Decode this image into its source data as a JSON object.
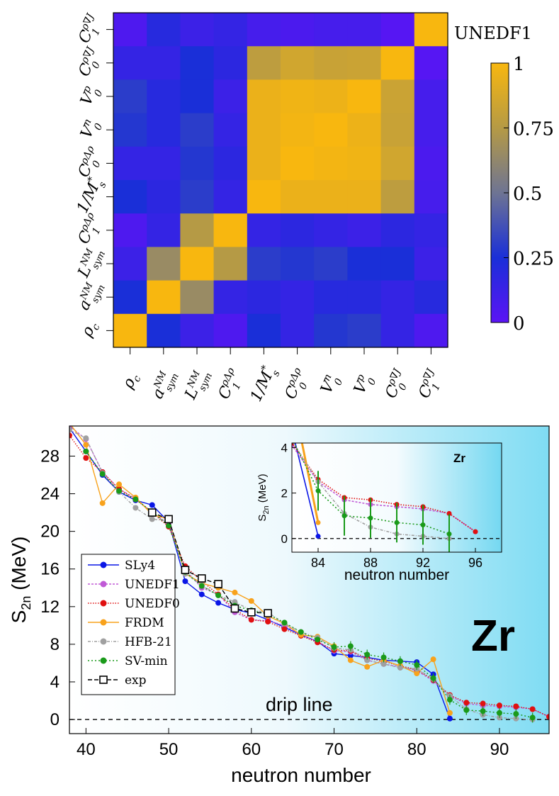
{
  "chart_data": [
    {
      "type": "heatmap",
      "title": "UNEDF1",
      "row_labels": [
        "C1ρ∇J",
        "C0ρ∇J",
        "V0p",
        "V0n",
        "C0ρΔρ",
        "1/Ms*",
        "C1ρΔρ",
        "LsymNM",
        "asymNM",
        "ρc"
      ],
      "col_labels": [
        "ρc",
        "asymNM",
        "LsymNM",
        "C1ρΔρ",
        "1/Ms*",
        "C0ρΔρ",
        "V0n",
        "V0p",
        "C0ρ∇J",
        "C1ρ∇J"
      ],
      "values": [
        [
          0.05,
          0.2,
          0.12,
          0.15,
          0.08,
          0.06,
          0.08,
          0.08,
          0.02,
          1.0
        ],
        [
          0.15,
          0.15,
          0.25,
          0.18,
          0.78,
          0.85,
          0.82,
          0.83,
          1.0,
          0.02
        ],
        [
          0.3,
          0.2,
          0.25,
          0.12,
          0.95,
          0.97,
          0.96,
          1.0,
          0.83,
          0.08
        ],
        [
          0.28,
          0.2,
          0.3,
          0.15,
          0.95,
          0.98,
          1.0,
          0.96,
          0.82,
          0.08
        ],
        [
          0.15,
          0.15,
          0.28,
          0.18,
          0.95,
          1.0,
          0.98,
          0.97,
          0.85,
          0.06
        ],
        [
          0.25,
          0.18,
          0.3,
          0.15,
          1.0,
          0.95,
          0.95,
          0.95,
          0.78,
          0.08
        ],
        [
          0.05,
          0.15,
          0.75,
          1.0,
          0.15,
          0.18,
          0.15,
          0.12,
          0.18,
          0.15
        ],
        [
          0.12,
          0.65,
          1.0,
          0.75,
          0.3,
          0.28,
          0.3,
          0.25,
          0.25,
          0.12
        ],
        [
          0.25,
          1.0,
          0.65,
          0.15,
          0.18,
          0.15,
          0.2,
          0.2,
          0.15,
          0.2
        ],
        [
          1.0,
          0.25,
          0.12,
          0.05,
          0.25,
          0.15,
          0.28,
          0.3,
          0.15,
          0.05
        ]
      ],
      "colorbar": {
        "min": 0,
        "max": 1,
        "ticks": [
          "0",
          "0.25",
          "0.5",
          "0.75",
          "1"
        ]
      },
      "colors": {
        "low": "#5b14f5",
        "mid_low": "#1a2fd8",
        "mid": "#6e7493",
        "high": "#f8b70f"
      }
    },
    {
      "type": "line",
      "title": "Zr",
      "xlabel": "neutron number",
      "ylabel": "S2n (MeV)",
      "xlim": [
        38,
        96
      ],
      "ylim": [
        -1.5,
        31.2
      ],
      "xticks": [
        "40",
        "50",
        "60",
        "70",
        "80",
        "90"
      ],
      "yticks": [
        "0",
        "4",
        "8",
        "12",
        "16",
        "20",
        "24",
        "28"
      ],
      "annotation": "drip line",
      "series": [
        {
          "name": "SLy4",
          "color": "#0a16e6",
          "dash": "",
          "marker": "circle",
          "x": [
            38,
            40,
            42,
            44,
            46,
            48,
            50,
            52,
            54,
            56,
            58,
            60,
            62,
            64,
            66,
            68,
            70,
            72,
            74,
            76,
            78,
            80,
            82,
            84
          ],
          "y": [
            31.0,
            28.5,
            26.0,
            24.2,
            23.3,
            22.8,
            21.0,
            14.7,
            13.3,
            12.4,
            11.7,
            11.3,
            10.6,
            9.8,
            9.0,
            8.3,
            7.0,
            6.8,
            6.6,
            6.3,
            6.2,
            6.1,
            4.8,
            0.1
          ]
        },
        {
          "name": "UNEDF1",
          "color": "#c05ad6",
          "dash": "3,2",
          "marker": "circle",
          "x": [
            38,
            40,
            42,
            44,
            46,
            48,
            50,
            52,
            54,
            56,
            58,
            60,
            62,
            64,
            66,
            68,
            70,
            72,
            74,
            76,
            78,
            80,
            82,
            84,
            86,
            88,
            90,
            92,
            94,
            96
          ],
          "y": [
            31.2,
            29.8,
            26.3,
            24.5,
            23.5,
            22.0,
            20.8,
            15.9,
            14.0,
            13.3,
            11.4,
            10.6,
            10.5,
            10.0,
            9.0,
            8.3,
            7.3,
            7.2,
            6.3,
            5.9,
            5.6,
            5.2,
            4.1,
            2.5,
            1.7,
            1.5,
            1.4,
            1.3,
            1.1,
            0.3
          ]
        },
        {
          "name": "UNEDF0",
          "color": "#e01010",
          "dash": "1.5,2",
          "marker": "circle",
          "x": [
            38,
            40,
            42,
            44,
            46,
            48,
            50,
            52,
            54,
            56,
            58,
            60,
            62,
            64,
            66,
            68,
            70,
            72,
            74,
            76,
            78,
            80,
            82,
            84,
            86,
            88,
            90,
            92,
            94,
            96
          ],
          "y": [
            30.2,
            27.8,
            26.3,
            24.5,
            23.4,
            22.0,
            20.5,
            16.3,
            14.7,
            13.3,
            11.7,
            10.6,
            10.4,
            9.6,
            8.9,
            8.2,
            7.4,
            7.3,
            6.5,
            6.2,
            5.7,
            5.3,
            4.2,
            2.6,
            1.8,
            1.7,
            1.5,
            1.4,
            1.1,
            0.3
          ]
        },
        {
          "name": "FRDM",
          "color": "#f8a21c",
          "dash": "",
          "marker": "circle",
          "x": [
            38,
            40,
            42,
            44,
            46,
            48,
            50,
            52,
            54,
            56,
            58,
            60,
            62,
            64,
            66,
            68,
            70,
            72,
            74,
            76,
            78,
            80,
            82,
            84
          ],
          "y": [
            31.5,
            29.2,
            23.0,
            25.0,
            23.6,
            21.8,
            21.3,
            15.5,
            14.5,
            14.0,
            13.5,
            12.6,
            11.0,
            10.2,
            9.0,
            8.8,
            7.8,
            6.3,
            5.6,
            6.3,
            5.7,
            4.9,
            6.4,
            0.7
          ]
        },
        {
          "name": "HFB-21",
          "color": "#a0a0a0",
          "dash": "4,2,1,2",
          "marker": "circle",
          "x": [
            38,
            40,
            42,
            44,
            46,
            48,
            50,
            52,
            54,
            56,
            58,
            60,
            62,
            64,
            66,
            68,
            70,
            72,
            74,
            76,
            78,
            80,
            82,
            84,
            86,
            88,
            90,
            92,
            94
          ],
          "y": [
            30.8,
            29.9,
            26.2,
            24.2,
            22.5,
            21.3,
            21.1,
            15.5,
            14.3,
            13.2,
            12.5,
            11.6,
            11.4,
            10.2,
            9.3,
            8.7,
            7.6,
            7.4,
            6.3,
            5.9,
            5.5,
            5.4,
            4.3,
            2.5,
            1.1,
            0.5,
            0.2,
            0.1,
            0.0
          ]
        },
        {
          "name": "SV-min",
          "color": "#1a9a1a",
          "dash": "2,3",
          "marker": "circle",
          "x": [
            40,
            42,
            44,
            46,
            48,
            50,
            52,
            54,
            56,
            58,
            60,
            62,
            64,
            66,
            68,
            70,
            72,
            74,
            76,
            78,
            80,
            82,
            84,
            86,
            88,
            90,
            92,
            94
          ],
          "y": [
            28.5,
            26.1,
            24.3,
            23.4,
            22.1,
            20.6,
            15.7,
            14.2,
            13.2,
            12.1,
            11.6,
            11.2,
            10.3,
            9.3,
            8.5,
            7.7,
            7.8,
            6.9,
            6.6,
            6.2,
            5.8,
            4.4,
            2.1,
            1.0,
            0.9,
            0.7,
            0.6,
            0.2
          ]
        },
        {
          "name": "exp",
          "color": "#000000",
          "dash": "6,3",
          "marker": "square",
          "x": [
            48,
            50,
            52,
            54,
            56,
            58,
            60,
            62
          ],
          "y": [
            22.0,
            21.3,
            15.9,
            15.0,
            14.4,
            11.8,
            11.4,
            11.3
          ]
        }
      ],
      "inset": {
        "title": "Zr",
        "xlabel": "neutron number",
        "ylabel": "S2n (MeV)",
        "xlim": [
          82,
          98
        ],
        "ylim": [
          -0.6,
          4.2
        ],
        "xticks": [
          "84",
          "88",
          "92",
          "96"
        ],
        "yticks": [
          "0",
          "2",
          "4"
        ]
      }
    }
  ]
}
